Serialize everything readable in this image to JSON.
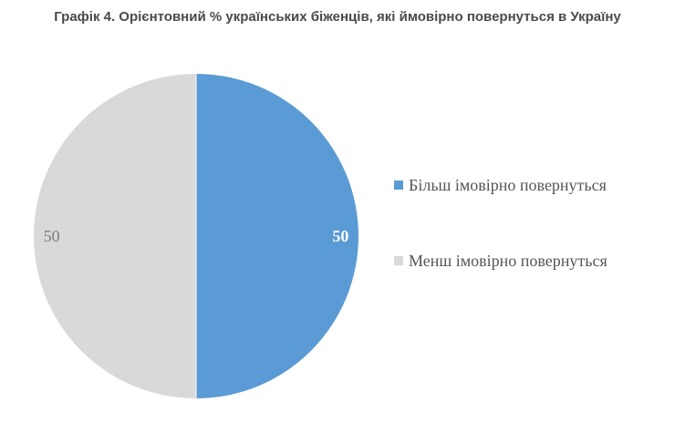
{
  "chart_data": {
    "type": "pie",
    "title": "Графік 4. Орієнтовний % українських біженців, які ймовірно повернуться в Україну",
    "categories": [
      "Більш імовірно повернуться",
      "Менш імовірно повернуться"
    ],
    "values": [
      50,
      50
    ],
    "data_labels": [
      "50",
      "50"
    ],
    "colors": [
      "#5b9bd5",
      "#d9d9d9"
    ],
    "label_colors": [
      "#ffffff",
      "#7f7f7f"
    ],
    "label_bold": [
      true,
      false
    ],
    "start_angle_deg": 0,
    "direction": "clockwise",
    "legend_position": "right"
  }
}
